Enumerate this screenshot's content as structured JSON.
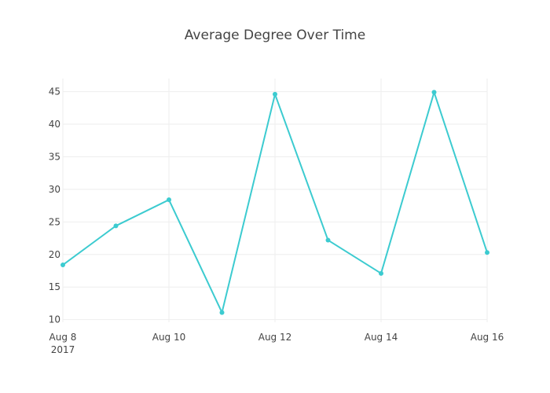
{
  "chart_data": {
    "type": "line",
    "title": "Average Degree Over Time",
    "xlabel": "",
    "ylabel": "",
    "x": [
      "2017-08-08",
      "2017-08-09",
      "2017-08-10",
      "2017-08-11",
      "2017-08-12",
      "2017-08-13",
      "2017-08-14",
      "2017-08-15",
      "2017-08-16"
    ],
    "series": [
      {
        "name": "",
        "values": [
          18.4,
          24.4,
          28.4,
          11.1,
          44.6,
          22.2,
          17.1,
          44.9,
          20.3
        ],
        "color": "#3ccbd0"
      }
    ],
    "xlim": [
      "2017-08-08",
      "2017-08-16"
    ],
    "ylim": [
      9.6,
      47
    ],
    "x_ticks": [
      {
        "date": "2017-08-08",
        "label": "Aug 8",
        "sublabel": "2017"
      },
      {
        "date": "2017-08-10",
        "label": "Aug 10",
        "sublabel": ""
      },
      {
        "date": "2017-08-12",
        "label": "Aug 12",
        "sublabel": ""
      },
      {
        "date": "2017-08-14",
        "label": "Aug 14",
        "sublabel": ""
      },
      {
        "date": "2017-08-16",
        "label": "Aug 16",
        "sublabel": ""
      }
    ],
    "y_ticks": [
      10,
      15,
      20,
      25,
      30,
      35,
      40,
      45
    ],
    "grid": true,
    "legend": "none",
    "colors": {
      "line": "#3ccbd0",
      "grid": "#eeeeee",
      "text": "#444444"
    }
  }
}
